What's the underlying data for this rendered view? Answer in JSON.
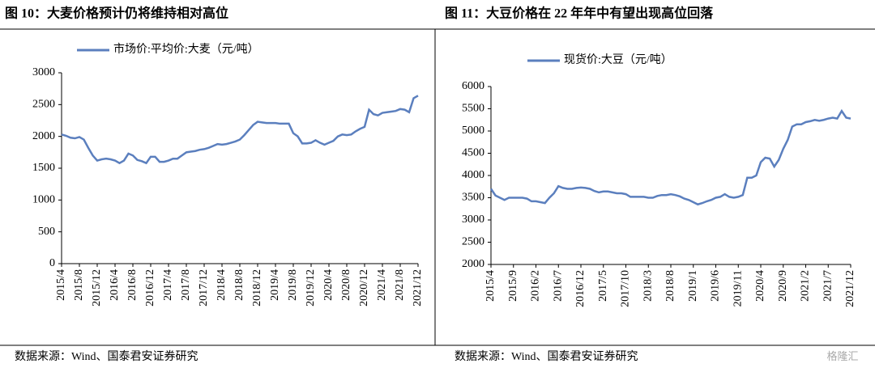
{
  "chart_data": [
    {
      "type": "line",
      "title": "图 10：大麦价格预计仍将维持相对高位",
      "source": "数据来源：Wind、国泰君安证券研究",
      "categories": [
        "2015/4",
        null,
        null,
        null,
        "2015/8",
        null,
        null,
        null,
        "2015/12",
        null,
        null,
        null,
        "2016/4",
        null,
        null,
        null,
        "2016/8",
        null,
        null,
        null,
        "2016/12",
        null,
        null,
        null,
        "2017/4",
        null,
        null,
        null,
        "2017/8",
        null,
        null,
        null,
        "2017/12",
        null,
        null,
        null,
        "2018/4",
        null,
        null,
        null,
        "2018/8",
        null,
        null,
        null,
        "2018/12",
        null,
        null,
        null,
        "2019/4",
        null,
        null,
        null,
        "2019/8",
        null,
        null,
        null,
        "2019/12",
        null,
        null,
        null,
        "2020/4",
        null,
        null,
        null,
        "2020/8",
        null,
        null,
        null,
        "2020/12",
        null,
        null,
        null,
        "2021/4",
        null,
        null,
        null,
        "2021/8",
        null,
        null,
        null,
        "2021/12"
      ],
      "series": [
        {
          "name": "市场价:平均价:大麦（元/吨）",
          "color": "#5b7fbe",
          "values": [
            2030,
            2010,
            1980,
            1970,
            1990,
            1950,
            1820,
            1700,
            1620,
            1640,
            1650,
            1640,
            1620,
            1580,
            1620,
            1730,
            1700,
            1630,
            1610,
            1580,
            1680,
            1680,
            1600,
            1600,
            1620,
            1650,
            1650,
            1700,
            1750,
            1760,
            1770,
            1790,
            1800,
            1820,
            1850,
            1880,
            1870,
            1880,
            1900,
            1920,
            1950,
            2020,
            2100,
            2180,
            2230,
            2220,
            2210,
            2210,
            2210,
            2200,
            2200,
            2200,
            2050,
            2000,
            1890,
            1890,
            1900,
            1940,
            1900,
            1870,
            1900,
            1930,
            2000,
            2030,
            2020,
            2030,
            2080,
            2120,
            2150,
            2420,
            2350,
            2330,
            2370,
            2380,
            2390,
            2400,
            2430,
            2420,
            2380,
            2600,
            2640
          ]
        }
      ],
      "ylim": [
        0,
        3000
      ],
      "yticks": [
        0,
        500,
        1000,
        1500,
        2000,
        2500,
        3000
      ],
      "legend": "top"
    },
    {
      "type": "line",
      "title": "图 11：大豆价格在 22 年年中有望出现高位回落",
      "source": "数据来源：Wind、国泰君安证券研究",
      "categories": [
        "2015/4",
        null,
        null,
        null,
        null,
        "2015/9",
        null,
        null,
        null,
        null,
        "2016/2",
        null,
        null,
        null,
        null,
        "2016/7",
        null,
        null,
        null,
        null,
        "2016/12",
        null,
        null,
        null,
        null,
        "2017/5",
        null,
        null,
        null,
        null,
        "2017/10",
        null,
        null,
        null,
        null,
        "2018/3",
        null,
        null,
        null,
        null,
        "2018/8",
        null,
        null,
        null,
        null,
        "2019/1",
        null,
        null,
        null,
        null,
        "2019/6",
        null,
        null,
        null,
        null,
        "2019/11",
        null,
        null,
        null,
        null,
        "2020/4",
        null,
        null,
        null,
        null,
        "2020/9",
        null,
        null,
        null,
        null,
        "2021/2",
        null,
        null,
        null,
        null,
        "2021/7",
        null,
        null,
        null,
        null,
        "2021/12"
      ],
      "series": [
        {
          "name": "现货价:大豆（元/吨）",
          "color": "#5b7fbe",
          "values": [
            3700,
            3550,
            3500,
            3450,
            3500,
            3500,
            3500,
            3500,
            3480,
            3420,
            3420,
            3400,
            3380,
            3500,
            3600,
            3760,
            3720,
            3700,
            3700,
            3720,
            3730,
            3720,
            3700,
            3650,
            3620,
            3640,
            3640,
            3620,
            3600,
            3600,
            3580,
            3520,
            3520,
            3520,
            3520,
            3500,
            3500,
            3540,
            3560,
            3560,
            3580,
            3560,
            3530,
            3480,
            3450,
            3400,
            3350,
            3380,
            3420,
            3450,
            3500,
            3520,
            3580,
            3520,
            3500,
            3520,
            3560,
            3950,
            3950,
            4000,
            4300,
            4400,
            4380,
            4200,
            4350,
            4600,
            4800,
            5100,
            5150,
            5150,
            5200,
            5220,
            5250,
            5230,
            5250,
            5280,
            5300,
            5280,
            5450,
            5300,
            5280
          ]
        }
      ],
      "ylim": [
        2000,
        6000
      ],
      "yticks": [
        2000,
        2500,
        3000,
        3500,
        4000,
        4500,
        5000,
        5500,
        6000
      ],
      "legend": "top"
    }
  ],
  "watermark": "格隆汇"
}
